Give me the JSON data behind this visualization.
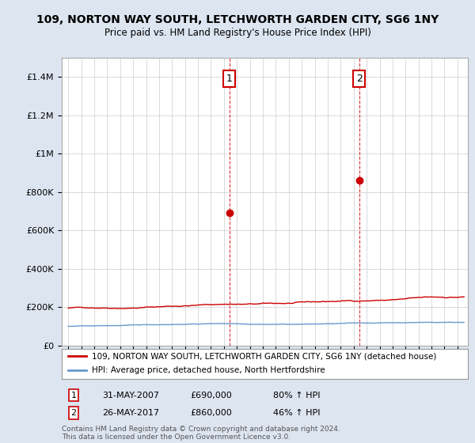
{
  "title": "109, NORTON WAY SOUTH, LETCHWORTH GARDEN CITY, SG6 1NY",
  "subtitle": "Price paid vs. HM Land Registry's House Price Index (HPI)",
  "legend_line1": "109, NORTON WAY SOUTH, LETCHWORTH GARDEN CITY, SG6 1NY (detached house)",
  "legend_line2": "HPI: Average price, detached house, North Hertfordshire",
  "annotation1": {
    "label": "1",
    "date": "31-MAY-2007",
    "price": "£690,000",
    "pct": "80% ↑ HPI"
  },
  "annotation2": {
    "label": "2",
    "date": "26-MAY-2017",
    "price": "£860,000",
    "pct": "46% ↑ HPI"
  },
  "footer": "Contains HM Land Registry data © Crown copyright and database right 2024.\nThis data is licensed under the Open Government Licence v3.0.",
  "red_color": "#cc0000",
  "blue_color": "#6699cc",
  "vline_color": "#cc0000",
  "fig_bg": "#dde5f0",
  "plot_bg": "#ffffff",
  "ylim": [
    0,
    1500000
  ],
  "yticks": [
    0,
    200000,
    400000,
    600000,
    800000,
    1000000,
    1200000,
    1400000
  ],
  "xlim_start": 1994.5,
  "xlim_end": 2025.8,
  "vline1_x": 2007.42,
  "vline2_x": 2017.42,
  "marker1_x": 2007.42,
  "marker1_y": 690000,
  "marker2_x": 2017.42,
  "marker2_y": 860000
}
